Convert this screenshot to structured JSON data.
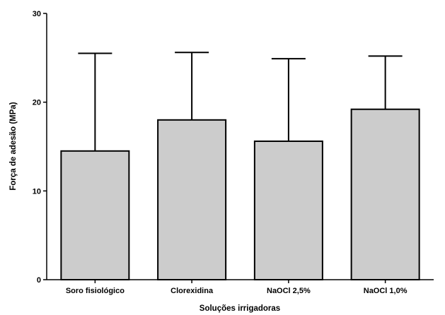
{
  "chart_data": {
    "type": "bar",
    "categories": [
      "Soro fisiológico",
      "Clorexidina",
      "NaOCl 2,5%",
      "NaOCl 1,0%"
    ],
    "values": [
      14.5,
      18.0,
      15.6,
      19.2
    ],
    "error_upper": [
      25.5,
      25.6,
      24.9,
      25.2
    ],
    "title": "",
    "xlabel": "Soluções irrigadoras",
    "ylabel": "Força de adesão (MPa)",
    "ylim": [
      0,
      30
    ],
    "yticks": [
      0,
      10,
      20,
      30
    ],
    "grid": false,
    "legend": "none",
    "colors": {
      "bar_fill": "#cccccc",
      "bar_stroke": "#000000",
      "axis": "#000000"
    }
  }
}
